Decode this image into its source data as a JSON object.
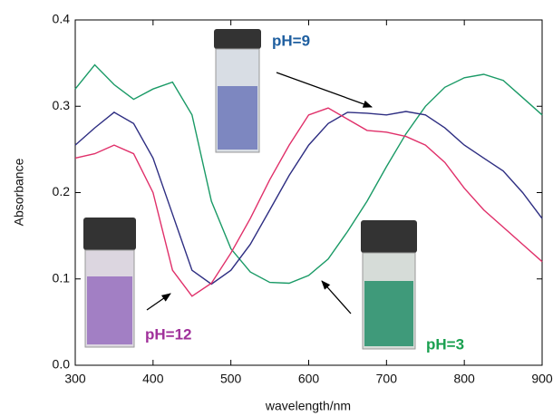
{
  "chart_data": {
    "type": "line",
    "x_label": "wavelength/nm",
    "y_label": "Absorbance",
    "x": [
      300,
      325,
      350,
      375,
      400,
      425,
      450,
      475,
      500,
      525,
      550,
      575,
      600,
      625,
      650,
      675,
      700,
      725,
      750,
      775,
      800,
      825,
      850,
      875,
      900
    ],
    "series": [
      {
        "name": "pH=3",
        "color": "#1a9a66",
        "label_color": "#1aa050",
        "values": [
          0.32,
          0.348,
          0.325,
          0.308,
          0.32,
          0.328,
          0.29,
          0.19,
          0.135,
          0.108,
          0.096,
          0.095,
          0.104,
          0.123,
          0.155,
          0.19,
          0.23,
          0.268,
          0.3,
          0.322,
          0.333,
          0.337,
          0.33,
          0.31,
          0.29
        ]
      },
      {
        "name": "pH=9",
        "color": "#2e2e82",
        "label_color": "#1f5fa0",
        "values": [
          0.255,
          0.275,
          0.293,
          0.28,
          0.24,
          0.175,
          0.11,
          0.094,
          0.11,
          0.14,
          0.18,
          0.22,
          0.255,
          0.28,
          0.293,
          0.292,
          0.29,
          0.294,
          0.29,
          0.275,
          0.255,
          0.24,
          0.225,
          0.2,
          0.17
        ]
      },
      {
        "name": "pH=12",
        "color": "#e0306a",
        "label_color": "#a0309a",
        "values": [
          0.24,
          0.245,
          0.255,
          0.245,
          0.2,
          0.11,
          0.08,
          0.095,
          0.13,
          0.17,
          0.215,
          0.255,
          0.29,
          0.298,
          0.285,
          0.272,
          0.27,
          0.265,
          0.255,
          0.235,
          0.205,
          0.18,
          0.16,
          0.14,
          0.12
        ]
      }
    ],
    "xlim": [
      300,
      900
    ],
    "xticks": [
      300,
      400,
      500,
      600,
      700,
      800,
      900
    ],
    "ylim": [
      0,
      0.4
    ],
    "yticks": [
      {
        "value": 0,
        "label": "0.0"
      },
      0.1,
      0.2,
      0.3,
      0.4
    ]
  }
}
